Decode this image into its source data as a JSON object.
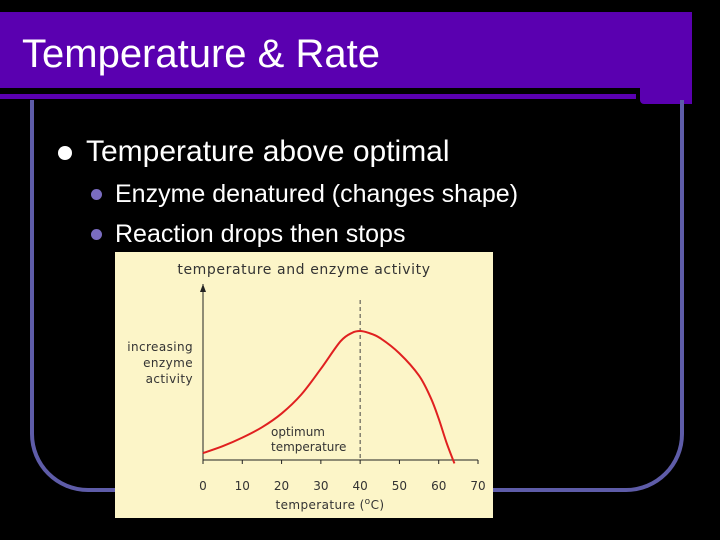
{
  "slide": {
    "title": "Temperature & Rate",
    "bullet": "Temperature above optimal",
    "sub_bullets": [
      "Enzyme denatured (changes shape)",
      "Reaction drops then stops"
    ],
    "colors": {
      "title_band": "#5a00b0",
      "frame": "#5e5ca8",
      "sub_bullet": "#7a6cc0",
      "chart_bg": "#fcf5c8",
      "curve": "#e02020"
    }
  },
  "chart_data": {
    "type": "line",
    "title": "temperature and enzyme activity",
    "xlabel": "temperature",
    "xlabel_unit_prefix": "(",
    "xlabel_unit_sup": "o",
    "xlabel_unit_suffix": "C)",
    "ylabel_lines": [
      "increasing",
      "enzyme",
      "activity"
    ],
    "x_ticks": [
      0,
      10,
      20,
      30,
      40,
      50,
      60,
      70
    ],
    "xlim": [
      0,
      70
    ],
    "ylim": [
      0,
      1
    ],
    "annotation_lines": [
      "optimum",
      "temperature"
    ],
    "optimum_x": 40,
    "series": [
      {
        "x": [
          0,
          5,
          10,
          15,
          20,
          25,
          30,
          35,
          38,
          40,
          42,
          45,
          50,
          55,
          58,
          60,
          62,
          64
        ],
        "y": [
          0.04,
          0.08,
          0.13,
          0.19,
          0.27,
          0.38,
          0.53,
          0.69,
          0.74,
          0.75,
          0.74,
          0.71,
          0.62,
          0.49,
          0.36,
          0.24,
          0.1,
          -0.02
        ]
      }
    ]
  }
}
